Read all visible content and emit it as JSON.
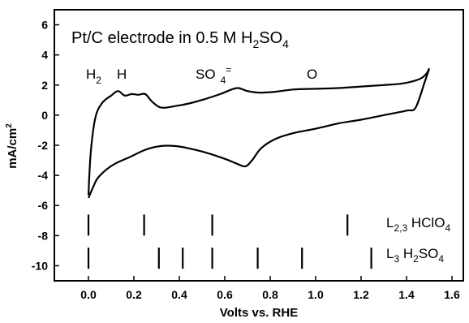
{
  "chart_data": {
    "type": "line",
    "title": "Pt/C electrode in 0.5 M H2SO4",
    "title_parts": {
      "main": "Pt/C electrode in 0.5 M H",
      "sub1": "2",
      "mid": "SO",
      "sub2": "4"
    },
    "xlabel": "Volts vs. RHE",
    "ylabel": "mA/cm²",
    "ylabel_parts": {
      "main": "mA/cm",
      "sup": "2"
    },
    "xlim": [
      -0.15,
      1.65
    ],
    "ylim": [
      -11,
      7
    ],
    "x_ticks": [
      0.0,
      0.2,
      0.4,
      0.6,
      0.8,
      1.0,
      1.2,
      1.4,
      1.6
    ],
    "x_tick_labels": [
      "0.0",
      "0.2",
      "0.4",
      "0.6",
      "0.8",
      "1.0",
      "1.2",
      "1.4",
      "1.6"
    ],
    "y_ticks": [
      6,
      4,
      2,
      0,
      -2,
      -4,
      -6,
      -8,
      -10
    ],
    "y_tick_labels": [
      "6",
      "4",
      "2",
      "0",
      "-2",
      "-4",
      "-6",
      "-8",
      "-10"
    ],
    "grid": false,
    "series": [
      {
        "x": [
          0.0,
          0.01,
          0.03,
          0.06,
          0.1,
          0.13,
          0.16,
          0.19,
          0.22,
          0.25,
          0.28,
          0.32,
          0.38,
          0.45,
          0.52,
          0.58,
          0.63,
          0.66,
          0.7,
          0.75,
          0.82,
          0.9,
          1.0,
          1.1,
          1.2,
          1.3,
          1.38,
          1.44,
          1.47,
          1.49,
          1.5
        ],
        "y": [
          -5.3,
          -2.5,
          -0.2,
          0.8,
          1.3,
          1.6,
          1.3,
          1.4,
          1.35,
          1.4,
          0.9,
          0.5,
          0.6,
          0.8,
          1.1,
          1.4,
          1.7,
          1.8,
          1.6,
          1.5,
          1.55,
          1.7,
          1.75,
          1.8,
          1.9,
          2.0,
          2.1,
          2.3,
          2.5,
          2.8,
          3.1
        ]
      },
      {
        "x": [
          1.5,
          1.48,
          1.44,
          1.4,
          1.3,
          1.2,
          1.1,
          1.0,
          0.9,
          0.82,
          0.76,
          0.72,
          0.69,
          0.65,
          0.6,
          0.52,
          0.44,
          0.38,
          0.32,
          0.25,
          0.18,
          0.12,
          0.08,
          0.04,
          0.02,
          0.0
        ],
        "y": [
          3.1,
          2.2,
          0.5,
          0.3,
          0.0,
          -0.3,
          -0.55,
          -0.9,
          -1.2,
          -1.6,
          -2.2,
          -3.0,
          -3.4,
          -3.2,
          -2.9,
          -2.5,
          -2.2,
          -2.05,
          -2.05,
          -2.3,
          -2.8,
          -3.2,
          -3.6,
          -4.2,
          -4.8,
          -5.5
        ]
      }
    ],
    "annotations": [
      {
        "id": "h2",
        "text": "H",
        "sub": "2",
        "x": 0.0,
        "y": 2.5
      },
      {
        "id": "h",
        "text": "H",
        "x": 0.13,
        "y": 2.5
      },
      {
        "id": "so4",
        "text": "SO",
        "sub": "4",
        "sup": "=",
        "x": 0.48,
        "y": 2.5
      },
      {
        "id": "o",
        "text": "O",
        "x": 0.98,
        "y": 2.5
      }
    ],
    "markers": [
      {
        "name": "L2,3 HClO4",
        "label_main": "L",
        "label_sub": "2,3",
        "label_mid": " HClO",
        "label_sub2": "4",
        "y_range": [
          -6.6,
          -8.0
        ],
        "positions": [
          0.0,
          0.245,
          0.545,
          1.14
        ]
      },
      {
        "name": "L3 H2SO4",
        "label_main": "L",
        "label_sub": "3",
        "label_mid": " H",
        "label_sub2": "2",
        "label_mid2": "SO",
        "label_sub3": "4",
        "y_range": [
          -8.8,
          -10.2
        ],
        "positions": [
          0.0,
          0.31,
          0.415,
          0.545,
          0.745,
          0.94,
          1.245
        ]
      }
    ]
  }
}
